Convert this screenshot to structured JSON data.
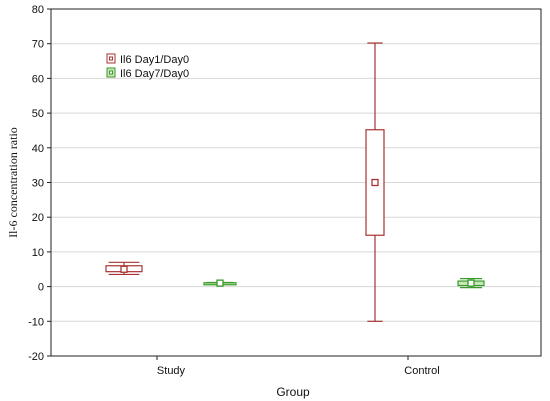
{
  "chart_data": {
    "type": "boxplot",
    "xlabel": "Group",
    "ylabel": "Il-6 concentration ratio",
    "categories": [
      "Study",
      "Control"
    ],
    "ylim": [
      -20,
      80
    ],
    "yticks": [
      -20,
      -10,
      0,
      10,
      20,
      30,
      40,
      50,
      60,
      70,
      80
    ],
    "grid": "horizontal",
    "legend_position": "top-left",
    "series": [
      {
        "name": "Il6 Day1/Day0",
        "color": "#a83232",
        "values": [
          {
            "category": "Study",
            "min": 3.5,
            "q1": 4.3,
            "median": 5.0,
            "q3": 6.0,
            "max": 7.0
          },
          {
            "category": "Control",
            "min": -10,
            "q1": 14.8,
            "median": 30.0,
            "q3": 45.2,
            "max": 70.2
          }
        ]
      },
      {
        "name": "Il6 Day7/Day0",
        "color": "#3a9a2a",
        "values": [
          {
            "category": "Study",
            "min": 0.8,
            "q1": 0.9,
            "median": 1.0,
            "q3": 1.1,
            "max": 1.2
          },
          {
            "category": "Control",
            "min": -0.3,
            "q1": 0.3,
            "median": 1.0,
            "q3": 1.6,
            "max": 2.3
          }
        ]
      }
    ]
  }
}
